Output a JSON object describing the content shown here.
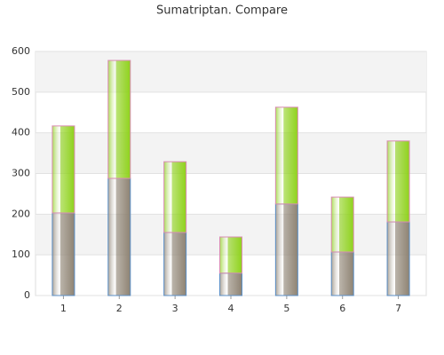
{
  "chart_data": {
    "type": "stacked_bar",
    "title": "Sumatriptan. Compare",
    "categories": [
      "1",
      "2",
      "3",
      "4",
      "5",
      "6",
      "7"
    ],
    "series": [
      {
        "color": "#8e8373",
        "values": [
          203,
          288,
          155,
          55,
          225,
          107,
          181
        ]
      },
      {
        "color": "#8fd21c",
        "values": [
          214,
          290,
          174,
          89,
          238,
          135,
          199
        ]
      }
    ],
    "ylim": [
      0,
      600
    ],
    "yticks": [
      0,
      100,
      200,
      300,
      400,
      500,
      600
    ],
    "grid": true
  }
}
